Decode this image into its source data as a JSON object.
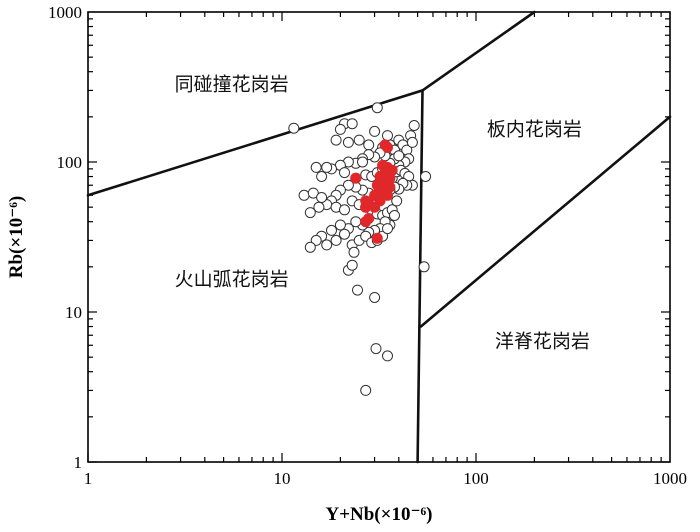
{
  "chart_data": {
    "type": "scatter",
    "title": "",
    "xlabel": "Y+Nb(×10⁻⁶)",
    "ylabel": "Rb(×10⁻⁶)",
    "xscale": "log",
    "yscale": "log",
    "xlim": [
      1,
      1000
    ],
    "ylim": [
      1,
      1000
    ],
    "xticks": [
      1,
      10,
      100,
      1000
    ],
    "yticks": [
      1,
      10,
      100,
      1000
    ],
    "xtick_labels": [
      "1",
      "10",
      "100",
      "1000"
    ],
    "ytick_labels": [
      "1",
      "10",
      "100",
      "1000"
    ],
    "grid": false,
    "region_labels": [
      {
        "text": "同碰撞花岗岩",
        "x": 5.5,
        "y": 300
      },
      {
        "text": "板内花岗岩",
        "x": 200,
        "y": 150
      },
      {
        "text": "火山弧花岗岩",
        "x": 5.5,
        "y": 15
      },
      {
        "text": "洋脊花岗岩",
        "x": 220,
        "y": 5.8
      }
    ],
    "boundaries": [
      {
        "points": [
          [
            1,
            60
          ],
          [
            53,
            300
          ],
          [
            200,
            1000
          ]
        ]
      },
      {
        "points": [
          [
            53,
            300
          ],
          [
            50,
            1
          ]
        ]
      },
      {
        "points": [
          [
            52,
            8
          ],
          [
            1000,
            200
          ]
        ]
      }
    ],
    "series": [
      {
        "marker": "open-circle",
        "color": "#ffffff",
        "edge": "#333333",
        "points": [
          [
            11.5,
            168
          ],
          [
            31,
            230
          ],
          [
            21,
            180
          ],
          [
            23,
            180
          ],
          [
            20,
            165
          ],
          [
            19,
            140
          ],
          [
            22,
            135
          ],
          [
            25,
            140
          ],
          [
            28,
            130
          ],
          [
            30,
            160
          ],
          [
            33,
            125
          ],
          [
            36,
            130
          ],
          [
            38,
            120
          ],
          [
            40,
            140
          ],
          [
            42,
            130
          ],
          [
            44,
            120
          ],
          [
            46,
            150
          ],
          [
            48,
            175
          ],
          [
            47,
            135
          ],
          [
            45,
            105
          ],
          [
            43,
            100
          ],
          [
            40,
            95
          ],
          [
            38,
            105
          ],
          [
            36,
            98
          ],
          [
            34,
            110
          ],
          [
            32,
            115
          ],
          [
            30,
            108
          ],
          [
            28,
            112
          ],
          [
            26,
            105
          ],
          [
            24,
            98
          ],
          [
            22,
            100
          ],
          [
            20,
            95
          ],
          [
            18,
            90
          ],
          [
            17,
            92
          ],
          [
            16,
            80
          ],
          [
            15,
            92
          ],
          [
            21,
            85
          ],
          [
            24,
            78
          ],
          [
            27,
            82
          ],
          [
            29,
            80
          ],
          [
            31,
            85
          ],
          [
            33,
            90
          ],
          [
            35,
            82
          ],
          [
            37,
            78
          ],
          [
            39,
            86
          ],
          [
            41,
            88
          ],
          [
            43,
            84
          ],
          [
            45,
            80
          ],
          [
            47,
            70
          ],
          [
            44,
            70
          ],
          [
            42,
            72
          ],
          [
            40,
            66
          ],
          [
            38,
            68
          ],
          [
            36,
            65
          ],
          [
            34,
            62
          ],
          [
            32,
            64
          ],
          [
            30,
            60
          ],
          [
            28,
            62
          ],
          [
            26,
            65
          ],
          [
            24,
            68
          ],
          [
            22,
            70
          ],
          [
            20,
            65
          ],
          [
            19,
            60
          ],
          [
            18,
            55
          ],
          [
            17,
            52
          ],
          [
            15.5,
            50
          ],
          [
            14,
            46
          ],
          [
            13,
            60
          ],
          [
            14.5,
            62
          ],
          [
            16,
            58
          ],
          [
            19,
            50
          ],
          [
            21,
            48
          ],
          [
            23,
            55
          ],
          [
            25,
            52
          ],
          [
            27,
            50
          ],
          [
            29,
            48
          ],
          [
            31,
            45
          ],
          [
            33,
            44
          ],
          [
            35,
            46
          ],
          [
            37,
            48
          ],
          [
            39,
            55
          ],
          [
            38,
            44
          ],
          [
            36,
            38
          ],
          [
            34,
            40
          ],
          [
            32,
            36
          ],
          [
            30,
            35
          ],
          [
            28,
            34
          ],
          [
            26,
            38
          ],
          [
            24,
            40
          ],
          [
            22,
            36
          ],
          [
            20,
            38
          ],
          [
            18,
            35
          ],
          [
            16,
            32
          ],
          [
            15,
            30
          ],
          [
            14,
            27
          ],
          [
            17,
            28
          ],
          [
            19,
            30
          ],
          [
            21,
            33
          ],
          [
            23,
            28
          ],
          [
            25,
            30
          ],
          [
            27,
            32
          ],
          [
            29,
            29
          ],
          [
            31,
            30
          ],
          [
            33,
            32
          ],
          [
            35,
            36
          ],
          [
            55,
            80
          ],
          [
            54,
            20
          ],
          [
            22,
            19
          ],
          [
            23,
            20.5
          ],
          [
            23.5,
            25
          ],
          [
            24.5,
            14
          ],
          [
            30,
            12.5
          ],
          [
            30.5,
            5.7
          ],
          [
            35,
            5.1
          ],
          [
            27,
            3.0
          ],
          [
            26,
            100
          ],
          [
            35,
            150
          ],
          [
            40,
            110
          ]
        ]
      },
      {
        "marker": "filled-circle",
        "color": "#e0282b",
        "edge": "#e0282b",
        "points": [
          [
            34,
            130
          ],
          [
            35,
            125
          ],
          [
            33,
            95
          ],
          [
            35,
            92
          ],
          [
            37,
            88
          ],
          [
            34,
            85
          ],
          [
            32,
            80
          ],
          [
            36,
            78
          ],
          [
            35,
            75
          ],
          [
            33,
            72
          ],
          [
            31,
            70
          ],
          [
            36,
            68
          ],
          [
            34,
            65
          ],
          [
            32,
            62
          ],
          [
            30,
            60
          ],
          [
            35,
            60
          ],
          [
            27,
            55
          ],
          [
            28,
            53
          ],
          [
            27,
            50
          ],
          [
            30,
            50
          ],
          [
            28,
            42
          ],
          [
            27,
            40
          ],
          [
            31,
            31
          ],
          [
            24,
            78
          ],
          [
            32,
            55
          ]
        ]
      }
    ]
  }
}
